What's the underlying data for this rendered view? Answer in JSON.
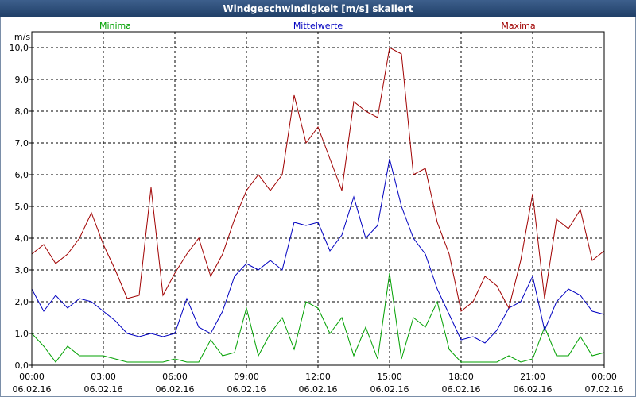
{
  "chart_data": {
    "type": "line",
    "title": "Windgeschwindigkeit [m/s] skaliert",
    "ylabel": "m/s",
    "ylim": [
      0,
      10.5
    ],
    "yticks": [
      {
        "v": 0,
        "label": "0,0"
      },
      {
        "v": 1,
        "label": "1,0"
      },
      {
        "v": 2,
        "label": "2,0"
      },
      {
        "v": 3,
        "label": "3,0"
      },
      {
        "v": 4,
        "label": "4,0"
      },
      {
        "v": 5,
        "label": "5,0"
      },
      {
        "v": 6,
        "label": "6,0"
      },
      {
        "v": 7,
        "label": "7,0"
      },
      {
        "v": 8,
        "label": "8,0"
      },
      {
        "v": 9,
        "label": "9,0"
      },
      {
        "v": 10,
        "label": "10,0"
      }
    ],
    "xlim": [
      0,
      24
    ],
    "xticks": [
      {
        "h": 0,
        "time": "00:00",
        "date": "06.02.16"
      },
      {
        "h": 3,
        "time": "03:00",
        "date": "06.02.16"
      },
      {
        "h": 6,
        "time": "06:00",
        "date": "06.02.16"
      },
      {
        "h": 9,
        "time": "09:00",
        "date": "06.02.16"
      },
      {
        "h": 12,
        "time": "12:00",
        "date": "06.02.16"
      },
      {
        "h": 15,
        "time": "15:00",
        "date": "06.02.16"
      },
      {
        "h": 18,
        "time": "18:00",
        "date": "06.02.16"
      },
      {
        "h": 21,
        "time": "21:00",
        "date": "06.02.16"
      },
      {
        "h": 24,
        "time": "00:00",
        "date": "07.02.16"
      }
    ],
    "legend": {
      "placement": "top"
    },
    "grid": true,
    "series": [
      {
        "name": "Minima",
        "color": "#00a000",
        "x": [
          0,
          0.5,
          1,
          1.5,
          2,
          2.5,
          3,
          3.5,
          4,
          4.5,
          5,
          5.5,
          6,
          6.5,
          7,
          7.5,
          8,
          8.5,
          9,
          9.5,
          10,
          10.5,
          11,
          11.5,
          12,
          12.5,
          13,
          13.5,
          14,
          14.5,
          15,
          15.5,
          16,
          16.5,
          17,
          17.5,
          18,
          18.5,
          19,
          19.5,
          20,
          20.5,
          21,
          21.5,
          22,
          22.5,
          23,
          23.5,
          24
        ],
        "values": [
          1.0,
          0.6,
          0.1,
          0.6,
          0.3,
          0.3,
          0.3,
          0.2,
          0.1,
          0.1,
          0.1,
          0.1,
          0.2,
          0.1,
          0.1,
          0.8,
          0.3,
          0.4,
          1.8,
          0.3,
          1.0,
          1.5,
          0.5,
          2.0,
          1.8,
          1.0,
          1.5,
          0.3,
          1.2,
          0.2,
          2.9,
          0.2,
          1.5,
          1.2,
          2.0,
          0.5,
          0.1,
          0.1,
          0.1,
          0.1,
          0.3,
          0.1,
          0.2,
          1.2,
          0.3,
          0.3,
          0.9,
          0.3,
          0.4
        ]
      },
      {
        "name": "Mittelwerte",
        "color": "#0000c0",
        "x": [
          0,
          0.5,
          1,
          1.5,
          2,
          2.5,
          3,
          3.5,
          4,
          4.5,
          5,
          5.5,
          6,
          6.5,
          7,
          7.5,
          8,
          8.5,
          9,
          9.5,
          10,
          10.5,
          11,
          11.5,
          12,
          12.5,
          13,
          13.5,
          14,
          14.5,
          15,
          15.5,
          16,
          16.5,
          17,
          17.5,
          18,
          18.5,
          19,
          19.5,
          20,
          20.5,
          21,
          21.5,
          22,
          22.5,
          23,
          23.5,
          24
        ],
        "values": [
          2.4,
          1.7,
          2.2,
          1.8,
          2.1,
          2.0,
          1.7,
          1.4,
          1.0,
          0.9,
          1.0,
          0.9,
          1.0,
          2.1,
          1.2,
          1.0,
          1.7,
          2.8,
          3.2,
          3.0,
          3.3,
          3.0,
          4.5,
          4.4,
          4.5,
          3.6,
          4.1,
          5.3,
          4.0,
          4.4,
          6.5,
          5.0,
          4.0,
          3.5,
          2.4,
          1.6,
          0.8,
          0.9,
          0.7,
          1.1,
          1.8,
          2.0,
          2.8,
          1.1,
          2.0,
          2.4,
          2.2,
          1.7,
          1.6
        ]
      },
      {
        "name": "Maxima",
        "color": "#a00000",
        "x": [
          0,
          0.5,
          1,
          1.5,
          2,
          2.5,
          3,
          3.5,
          4,
          4.5,
          5,
          5.5,
          6,
          6.5,
          7,
          7.5,
          8,
          8.5,
          9,
          9.5,
          10,
          10.5,
          11,
          11.5,
          12,
          12.5,
          13,
          13.5,
          14,
          14.5,
          15,
          15.5,
          16,
          16.5,
          17,
          17.5,
          18,
          18.5,
          19,
          19.5,
          20,
          20.5,
          21,
          21.5,
          22,
          22.5,
          23,
          23.5,
          24
        ],
        "values": [
          3.5,
          3.8,
          3.2,
          3.5,
          4.0,
          4.8,
          3.8,
          3.0,
          2.1,
          2.2,
          5.6,
          2.2,
          2.9,
          3.5,
          4.0,
          2.8,
          3.5,
          4.6,
          5.5,
          6.0,
          5.5,
          6.0,
          8.5,
          7.0,
          7.5,
          6.5,
          5.5,
          8.3,
          8.0,
          7.8,
          10.0,
          9.8,
          6.0,
          6.2,
          4.5,
          3.5,
          1.7,
          2.0,
          2.8,
          2.5,
          1.8,
          3.3,
          5.4,
          2.1,
          4.6,
          4.3,
          4.9,
          3.3,
          3.6
        ]
      }
    ]
  }
}
